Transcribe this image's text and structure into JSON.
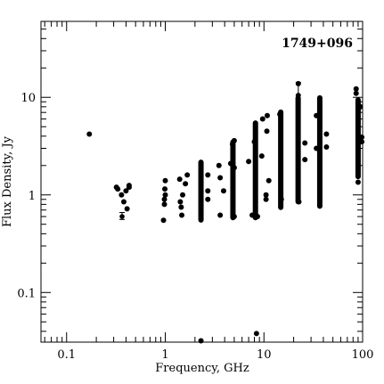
{
  "chart_data": {
    "type": "scatter",
    "title": "1749+096",
    "xlabel": "Frequency, GHz",
    "ylabel": "Flux Density, Jy",
    "x_scale": "log",
    "y_scale": "log",
    "xlim": [
      0.055,
      100
    ],
    "ylim": [
      0.031,
      60
    ],
    "x_ticks": [
      {
        "value": 0.1,
        "label": "0.1"
      },
      {
        "value": 1,
        "label": "1"
      },
      {
        "value": 10,
        "label": "10"
      },
      {
        "value": 100,
        "label": "100"
      }
    ],
    "y_ticks": [
      {
        "value": 0.1,
        "label": "0.1"
      },
      {
        "value": 1,
        "label": "1"
      },
      {
        "value": 10,
        "label": "10"
      }
    ],
    "grid": false,
    "marker_color": "#000000",
    "points": [
      [
        0.17,
        4.2
      ],
      [
        0.32,
        1.2
      ],
      [
        0.33,
        1.15
      ],
      [
        0.36,
        1.0
      ],
      [
        0.38,
        0.85
      ],
      [
        0.4,
        1.1
      ],
      [
        0.41,
        0.72
      ],
      [
        0.43,
        1.25
      ],
      [
        0.43,
        1.2
      ],
      [
        0.96,
        0.55
      ],
      [
        0.98,
        0.8
      ],
      [
        0.98,
        0.9
      ],
      [
        0.99,
        1.15
      ],
      [
        1.0,
        1.4
      ],
      [
        1.0,
        1.0
      ],
      [
        1.4,
        1.45
      ],
      [
        1.42,
        0.85
      ],
      [
        1.45,
        0.75
      ],
      [
        1.47,
        0.62
      ],
      [
        1.5,
        1.0
      ],
      [
        1.6,
        1.3
      ],
      [
        1.67,
        1.6
      ],
      [
        2.3,
        0.032
      ],
      [
        2.7,
        1.6
      ],
      [
        2.7,
        0.9
      ],
      [
        2.7,
        1.1
      ],
      [
        3.5,
        2.0
      ],
      [
        3.6,
        1.5
      ],
      [
        3.6,
        0.62
      ],
      [
        3.9,
        1.1
      ],
      [
        4.6,
        2.1
      ],
      [
        4.8,
        3.3
      ],
      [
        5.0,
        3.6
      ],
      [
        5.0,
        1.9
      ],
      [
        5.0,
        0.6
      ],
      [
        7.0,
        2.2
      ],
      [
        7.6,
        0.62
      ],
      [
        8.4,
        0.038
      ],
      [
        8.0,
        3.5
      ],
      [
        8.6,
        0.6
      ],
      [
        9.5,
        2.5
      ],
      [
        9.7,
        6.0
      ],
      [
        10.5,
        1.0
      ],
      [
        10.5,
        0.9
      ],
      [
        10.7,
        4.5
      ],
      [
        11.2,
        1.4
      ],
      [
        10.8,
        6.5
      ],
      [
        15.0,
        0.9
      ],
      [
        14.5,
        6.7
      ],
      [
        22.3,
        13.8
      ],
      [
        22.6,
        0.85
      ],
      [
        26.0,
        3.4
      ],
      [
        26.0,
        2.3
      ],
      [
        34.0,
        3.0
      ],
      [
        34.0,
        6.5
      ],
      [
        43.0,
        4.2
      ],
      [
        43.0,
        3.1
      ],
      [
        86.0,
        12.2
      ],
      [
        86.0,
        11.0
      ],
      [
        90.0,
        1.35
      ],
      [
        95.0,
        8.0
      ],
      [
        98.0,
        3.9
      ],
      [
        98.0,
        3.5
      ]
    ],
    "vertical_clusters": [
      {
        "x": 2.3,
        "low": 0.52,
        "high": 2.3
      },
      {
        "x": 4.85,
        "low": 0.55,
        "high": 3.7
      },
      {
        "x": 8.2,
        "low": 0.55,
        "high": 5.8
      },
      {
        "x": 14.8,
        "low": 0.7,
        "high": 7.5
      },
      {
        "x": 22.2,
        "low": 0.8,
        "high": 10.5
      },
      {
        "x": 36.8,
        "low": 0.72,
        "high": 10.5
      },
      {
        "x": 90.0,
        "low": 1.45,
        "high": 10.0
      }
    ],
    "error_bars": [
      {
        "x": 0.365,
        "y": 0.6,
        "low": 0.56,
        "high": 0.66
      },
      {
        "x": 22.3,
        "y": 10.5,
        "low": 10.5,
        "high": 14.2
      }
    ]
  }
}
